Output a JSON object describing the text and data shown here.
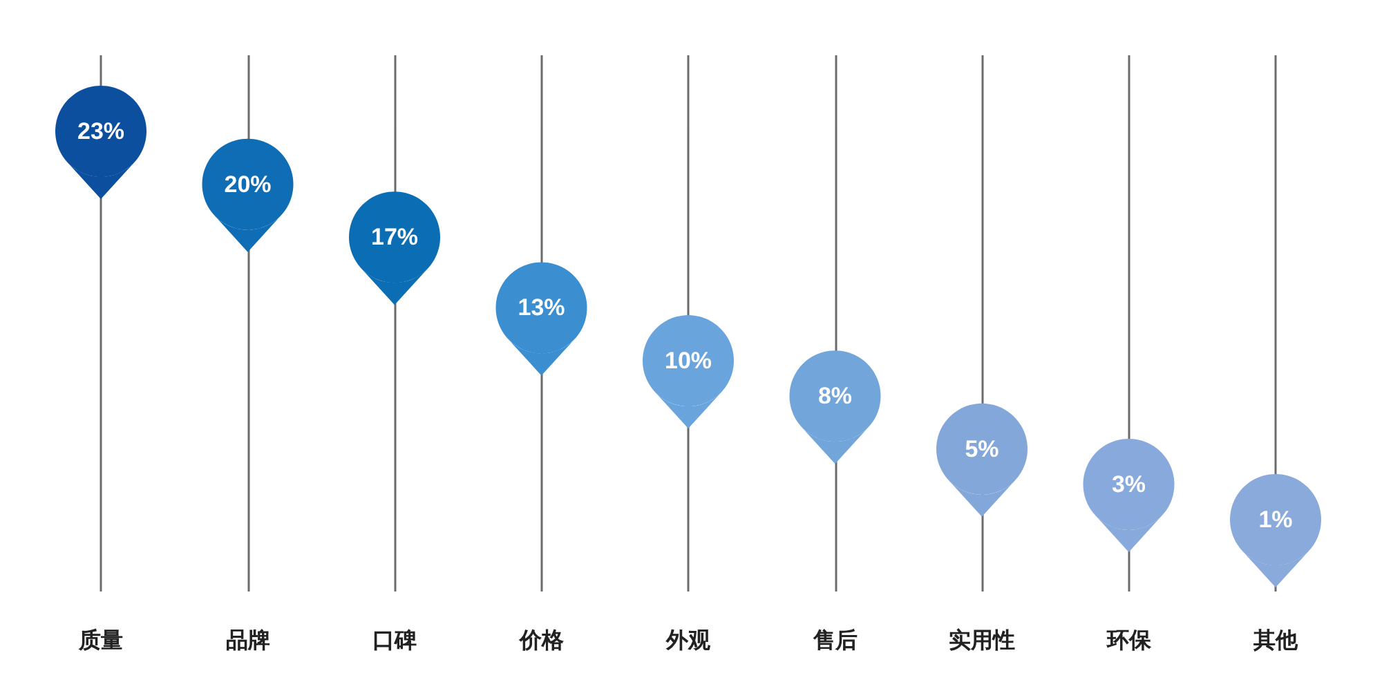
{
  "chart_data": {
    "type": "scatter",
    "categories": [
      "质量",
      "品牌",
      "口碑",
      "价格",
      "外观",
      "售后",
      "实用性",
      "环保",
      "其他"
    ],
    "values": [
      23,
      20,
      17,
      13,
      10,
      8,
      5,
      3,
      1
    ],
    "colors": [
      "#0b4f9e",
      "#0e6db5",
      "#0b6db4",
      "#3b8ed0",
      "#6aa4dc",
      "#72a6da",
      "#84a7d9",
      "#88a9db",
      "#8aaadc"
    ],
    "value_labels": [
      "23%",
      "20%",
      "17%",
      "13%",
      "10%",
      "8%",
      "5%",
      "3%",
      "1%"
    ],
    "marker": "circle",
    "grid": "x",
    "tick_labels": "x"
  }
}
